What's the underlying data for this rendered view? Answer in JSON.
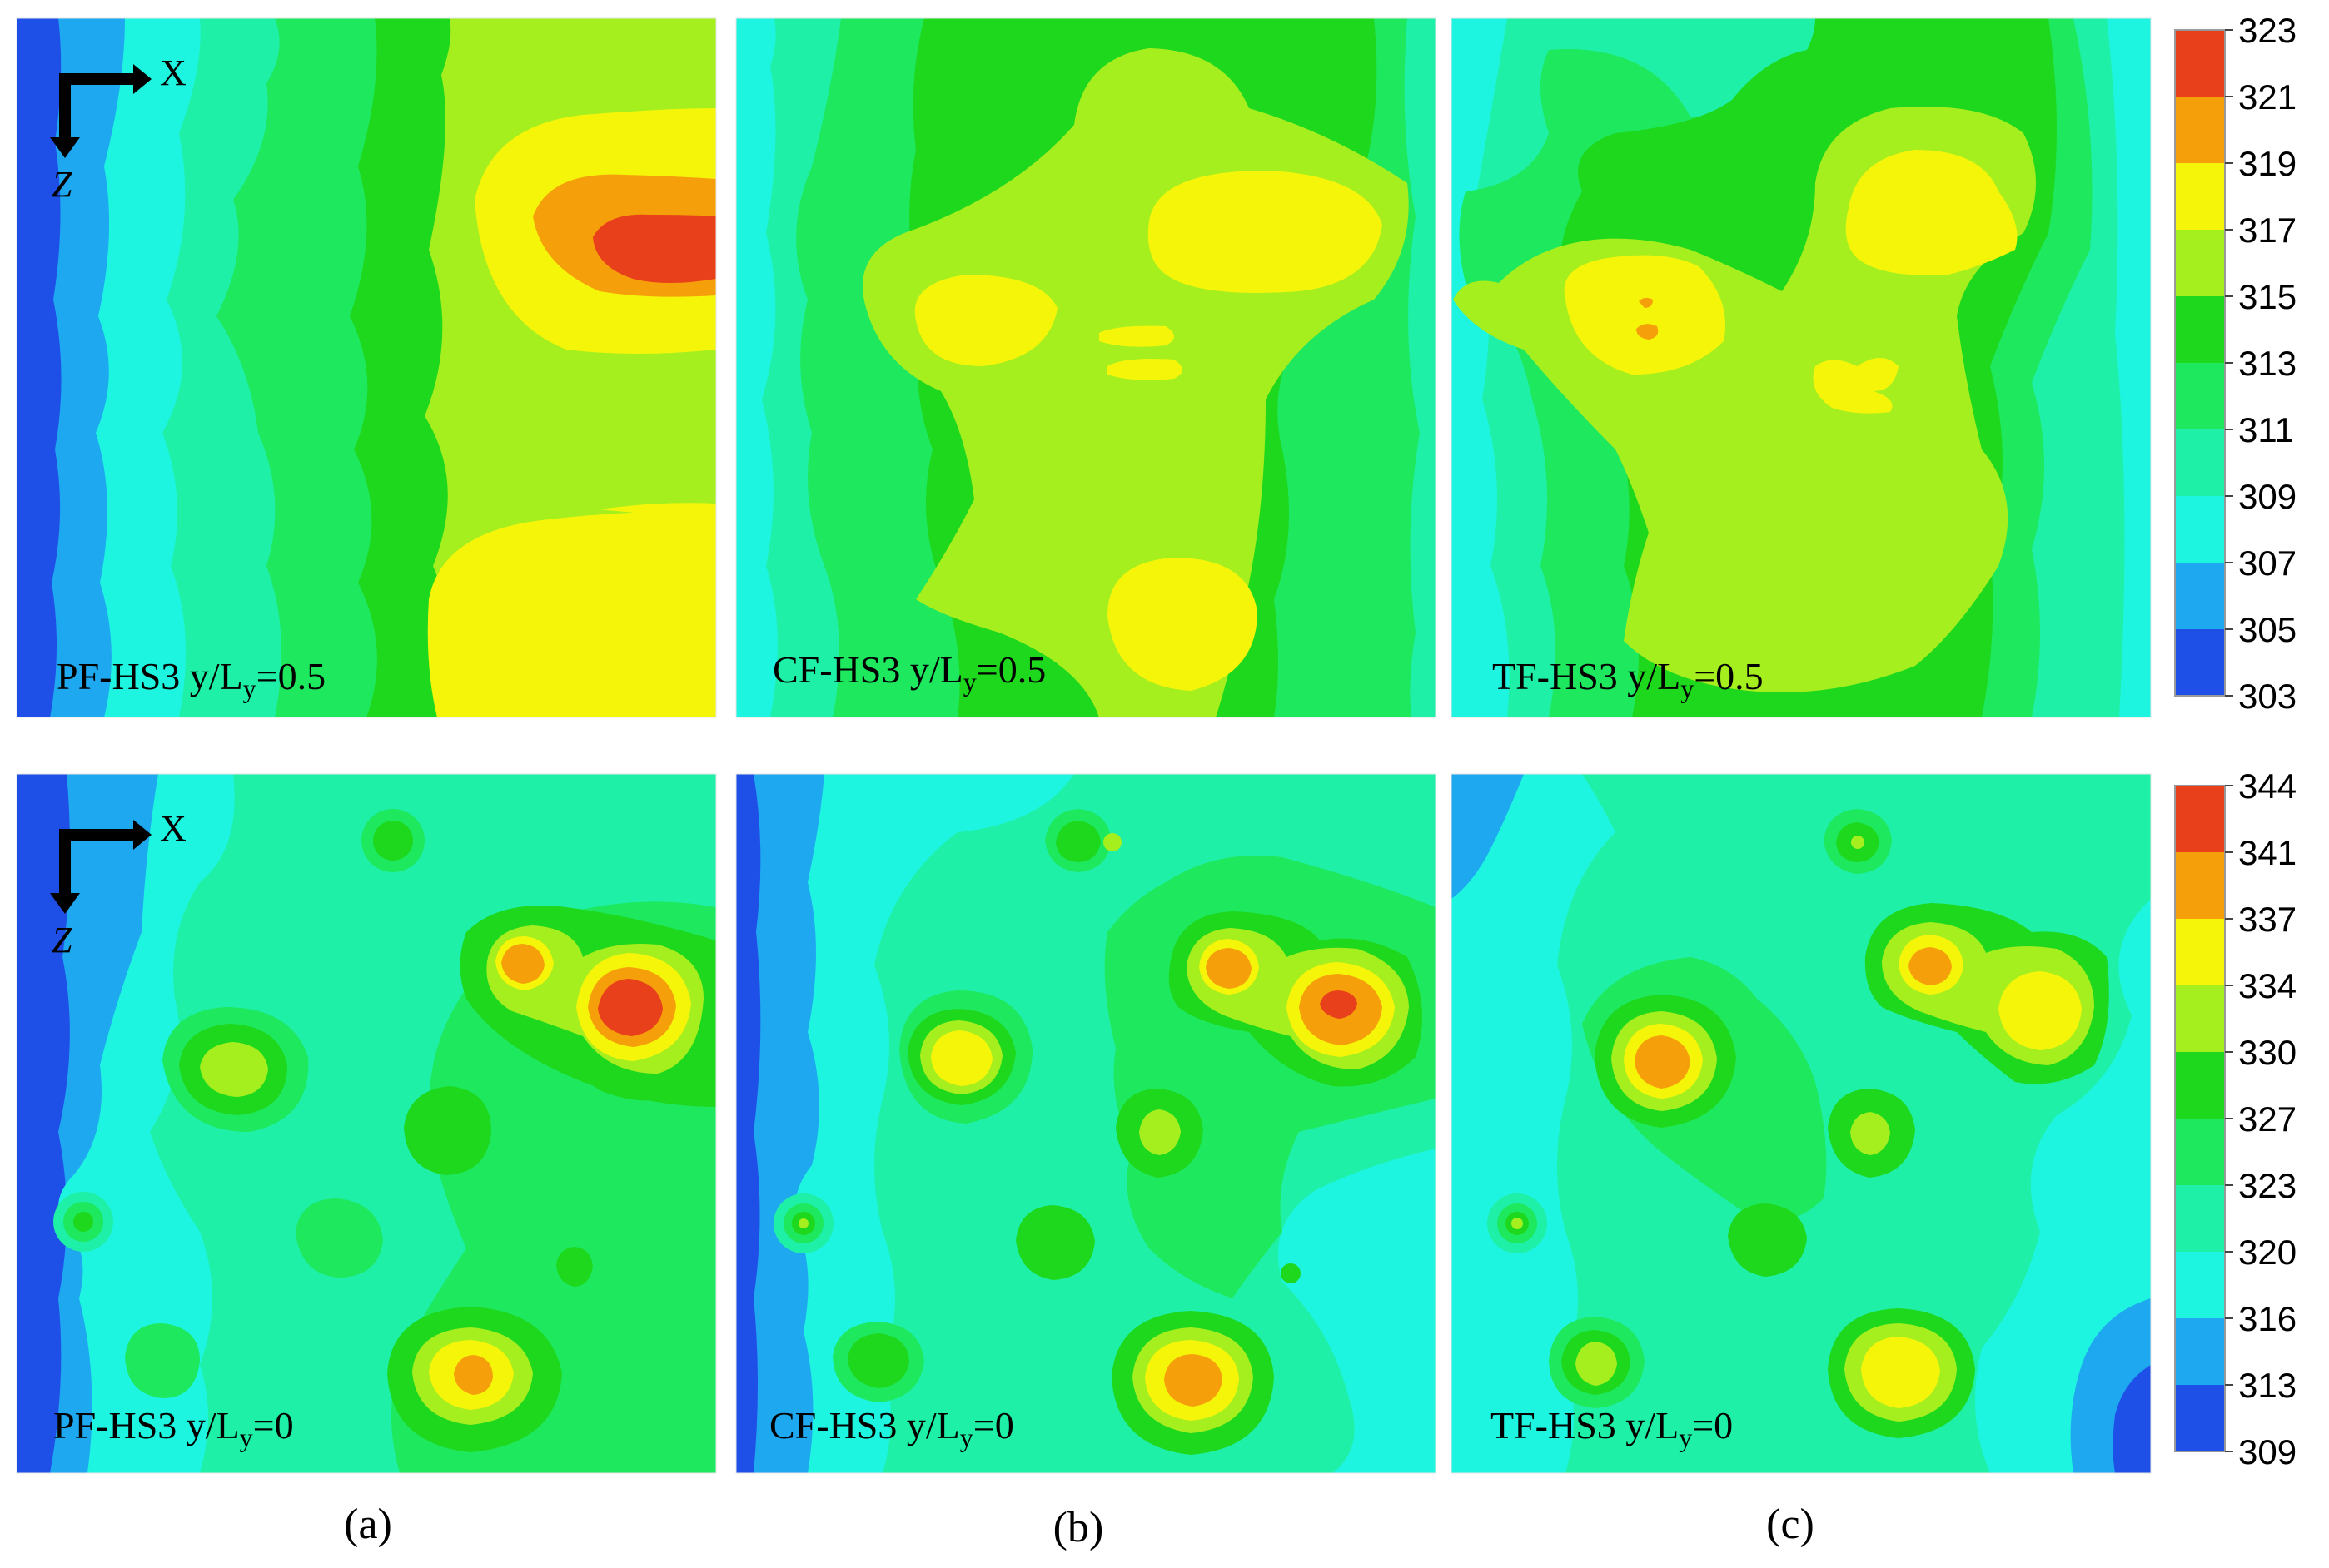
{
  "figure": {
    "column_labels": [
      "(a)",
      "(b)",
      "(c)"
    ],
    "axis_indicator": {
      "x_label": "X",
      "z_label": "Z"
    }
  },
  "colorbars": [
    {
      "ticks": [
        "323",
        "321",
        "319",
        "317",
        "315",
        "313",
        "311",
        "309",
        "307",
        "305",
        "303"
      ]
    },
    {
      "ticks": [
        "344",
        "341",
        "337",
        "334",
        "330",
        "327",
        "323",
        "320",
        "316",
        "313",
        "309"
      ]
    }
  ],
  "palette": [
    "#e8401a",
    "#f5a00a",
    "#f5f50a",
    "#a5ef1e",
    "#1ed81e",
    "#1ee85e",
    "#1ef0a8",
    "#1ef5e0",
    "#1ea8f0",
    "#1e50e8"
  ],
  "chart_data": [
    {
      "type": "heatmap",
      "panel": "PF-HS3",
      "label_prefix": "PF-HS3 y/L",
      "label_sub": "y",
      "label_suffix": "=0.5",
      "range": [
        303,
        323
      ]
    },
    {
      "type": "heatmap",
      "panel": "CF-HS3",
      "label_prefix": "CF-HS3 y/L",
      "label_sub": "y",
      "label_suffix": "=0.5",
      "range": [
        303,
        323
      ]
    },
    {
      "type": "heatmap",
      "panel": "TF-HS3",
      "label_prefix": "TF-HS3 y/L",
      "label_sub": "y",
      "label_suffix": "=0.5",
      "range": [
        303,
        323
      ]
    },
    {
      "type": "heatmap",
      "panel": "PF-HS3",
      "label_prefix": "PF-HS3 y/L",
      "label_sub": "y",
      "label_suffix": "=0",
      "range": [
        309,
        344
      ]
    },
    {
      "type": "heatmap",
      "panel": "CF-HS3",
      "label_prefix": "CF-HS3 y/L",
      "label_sub": "y",
      "label_suffix": "=0",
      "range": [
        309,
        344
      ]
    },
    {
      "type": "heatmap",
      "panel": "TF-HS3",
      "label_prefix": "TF-HS3 y/L",
      "label_sub": "y",
      "label_suffix": "=0",
      "range": [
        309,
        344
      ]
    }
  ]
}
